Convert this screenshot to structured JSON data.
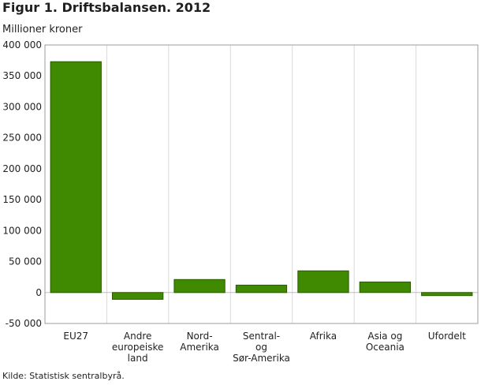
{
  "chart_data": {
    "type": "bar",
    "title": "Figur 1. Driftsbalansen. 2012",
    "ylabel": "Millioner kroner",
    "xlabel": "",
    "categories": [
      [
        "EU27"
      ],
      [
        "Andre",
        "europeiske",
        "land"
      ],
      [
        "Nord-",
        "Amerika"
      ],
      [
        "Sentral-",
        "og",
        "Sør-Amerika"
      ],
      [
        "Afrika"
      ],
      [
        "Asia og",
        "Oceania"
      ],
      [
        "Ufordelt"
      ]
    ],
    "values": [
      373000,
      -11000,
      21000,
      12000,
      35000,
      17000,
      -5000
    ],
    "ylim": [
      -50000,
      400000
    ],
    "yticks": [
      {
        "value": -50000,
        "label": "-50 000"
      },
      {
        "value": 0,
        "label": "0"
      },
      {
        "value": 50000,
        "label": "50 000"
      },
      {
        "value": 100000,
        "label": "100 000"
      },
      {
        "value": 150000,
        "label": "150 000"
      },
      {
        "value": 200000,
        "label": "200 000"
      },
      {
        "value": 250000,
        "label": "250 000"
      },
      {
        "value": 300000,
        "label": "300 000"
      },
      {
        "value": 350000,
        "label": "350 000"
      },
      {
        "value": 400000,
        "label": "400 000"
      }
    ],
    "grid": "vertical",
    "bar_color": "#3f8a00",
    "bar_edge": "#2a5a00"
  },
  "source": "Kilde: Statistisk sentralbyrå."
}
